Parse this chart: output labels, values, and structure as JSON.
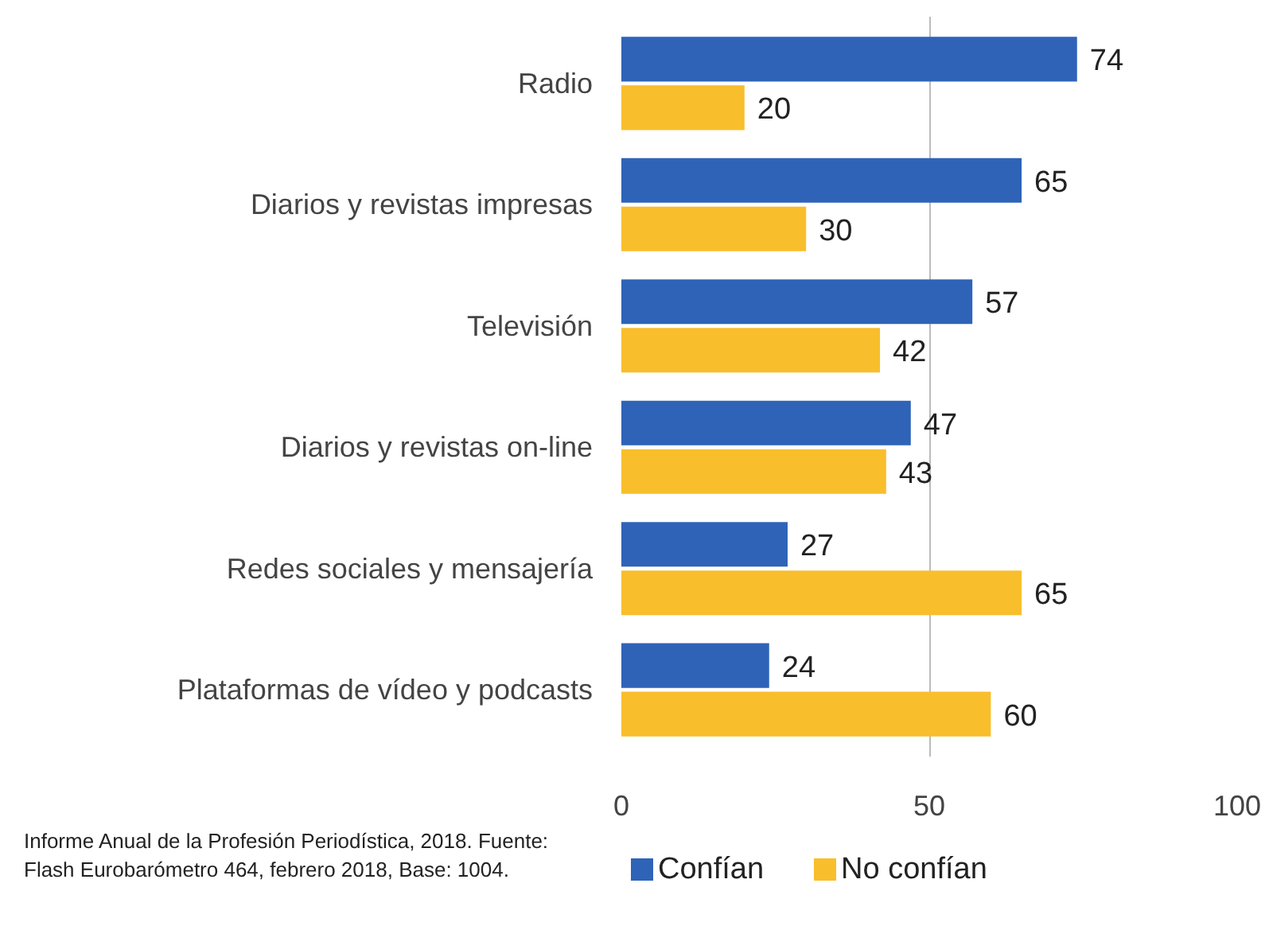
{
  "chart_data": {
    "type": "bar",
    "orientation": "horizontal",
    "categories": [
      "Radio",
      "Diarios y revistas impresas",
      "Televisión",
      "Diarios y revistas on-line",
      "Redes sociales y mensajería",
      "Plataformas de vídeo y podcasts"
    ],
    "series": [
      {
        "name": "Confían",
        "color": "#2e63b8",
        "values": [
          74,
          65,
          57,
          47,
          27,
          24
        ]
      },
      {
        "name": "No confían",
        "color": "#f9be2c",
        "values": [
          20,
          30,
          42,
          43,
          65,
          60
        ]
      }
    ],
    "xlim": [
      0,
      100
    ],
    "xticks": [
      0,
      50,
      100
    ],
    "grid": "x",
    "data_labels": true,
    "legend": "bottom",
    "annotations": [
      "Informe Anual de la Profesión Periodística, 2018. Fuente:",
      "Flash Eurobarómetro 464, febrero 2018, Base: 1004."
    ]
  }
}
